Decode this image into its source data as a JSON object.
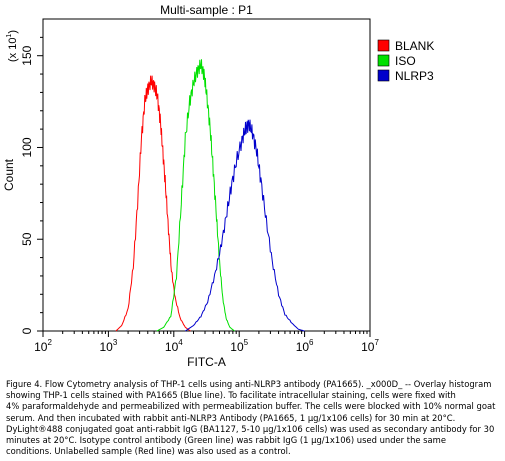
{
  "chart_data": {
    "type": "line",
    "title": "Multi-sample : P1",
    "xlabel": "FITC-A",
    "ylabel": "Count",
    "y_multiplier": "(x 10",
    "y_multiplier_exp": "1",
    "y_multiplier_close": ")",
    "x_scale": "log",
    "xlim": [
      100,
      10000000
    ],
    "ylim": [
      0,
      170
    ],
    "x_ticks": [
      {
        "base": "10",
        "exp": "2",
        "value": 100
      },
      {
        "base": "10",
        "exp": "3",
        "value": 1000
      },
      {
        "base": "10",
        "exp": "4",
        "value": 10000
      },
      {
        "base": "10",
        "exp": "5",
        "value": 100000
      },
      {
        "base": "10",
        "exp": "6",
        "value": 1000000
      },
      {
        "base": "10",
        "exp": "7",
        "value": 10000000
      }
    ],
    "y_ticks": [
      "0",
      "50",
      "100",
      "150"
    ],
    "y_tick_values": [
      0,
      50,
      100,
      150
    ],
    "grid": false,
    "legend_placement": "top-right",
    "series": [
      {
        "name": "BLANK",
        "color": "#ff0000",
        "x": [
          1300,
          1600,
          2000,
          2400,
          2800,
          3200,
          3600,
          4000,
          4500,
          5000,
          5600,
          6200,
          6800,
          7500,
          8300,
          9200,
          10500,
          12500,
          15000,
          18000
        ],
        "y": [
          0,
          3,
          12,
          35,
          70,
          105,
          125,
          132,
          136,
          134,
          128,
          115,
          98,
          78,
          55,
          33,
          18,
          7,
          2,
          0
        ]
      },
      {
        "name": "ISO",
        "color": "#00e000",
        "x": [
          5500,
          7000,
          9000,
          11000,
          13000,
          15000,
          17500,
          20000,
          23000,
          26000,
          29000,
          32000,
          36000,
          40000,
          45000,
          50000,
          56000,
          63000,
          72000,
          85000
        ],
        "y": [
          0,
          2,
          8,
          30,
          70,
          105,
          125,
          135,
          142,
          145,
          140,
          128,
          110,
          88,
          62,
          38,
          18,
          7,
          2,
          0
        ]
      },
      {
        "name": "NLRP3",
        "color": "#0000cc",
        "x": [
          15000,
          20000,
          26000,
          33000,
          42000,
          52000,
          63000,
          75000,
          90000,
          110000,
          125000,
          140000,
          160000,
          185000,
          215000,
          260000,
          320000,
          400000,
          500000,
          650000,
          800000,
          1000000
        ],
        "y": [
          0,
          3,
          8,
          16,
          30,
          45,
          62,
          78,
          92,
          104,
          110,
          113,
          108,
          98,
          82,
          60,
          38,
          20,
          9,
          4,
          1,
          0
        ]
      }
    ]
  },
  "caption": {
    "lines": [
      "Figure 4. Flow Cytometry analysis of THP-1 cells using anti-NLRP3 antibody (PA1665). _x000D_ -- Overlay histogram",
      "showing THP-1 cells stained with PA1665 (Blue line). To facilitate intracellular staining, cells were fixed with",
      "4% paraformaldehyde and permeabilized with permeabilization buffer. The cells were blocked with 10% normal goat",
      "serum. And then incubated with rabbit anti-NLRP3 Antibody (PA1665, 1 μg/1x106 cells) for 30 min at 20°C.",
      "DyLight®488 conjugated goat anti-rabbit IgG (BA1127, 5-10 μg/1x106 cells) was used as secondary antibody for 30",
      "minutes at 20°C. Isotype control antibody (Green line) was rabbit IgG (1 μg/1x106) used under the same",
      "conditions. Unlabelled sample (Red line) was also used as a control."
    ]
  }
}
